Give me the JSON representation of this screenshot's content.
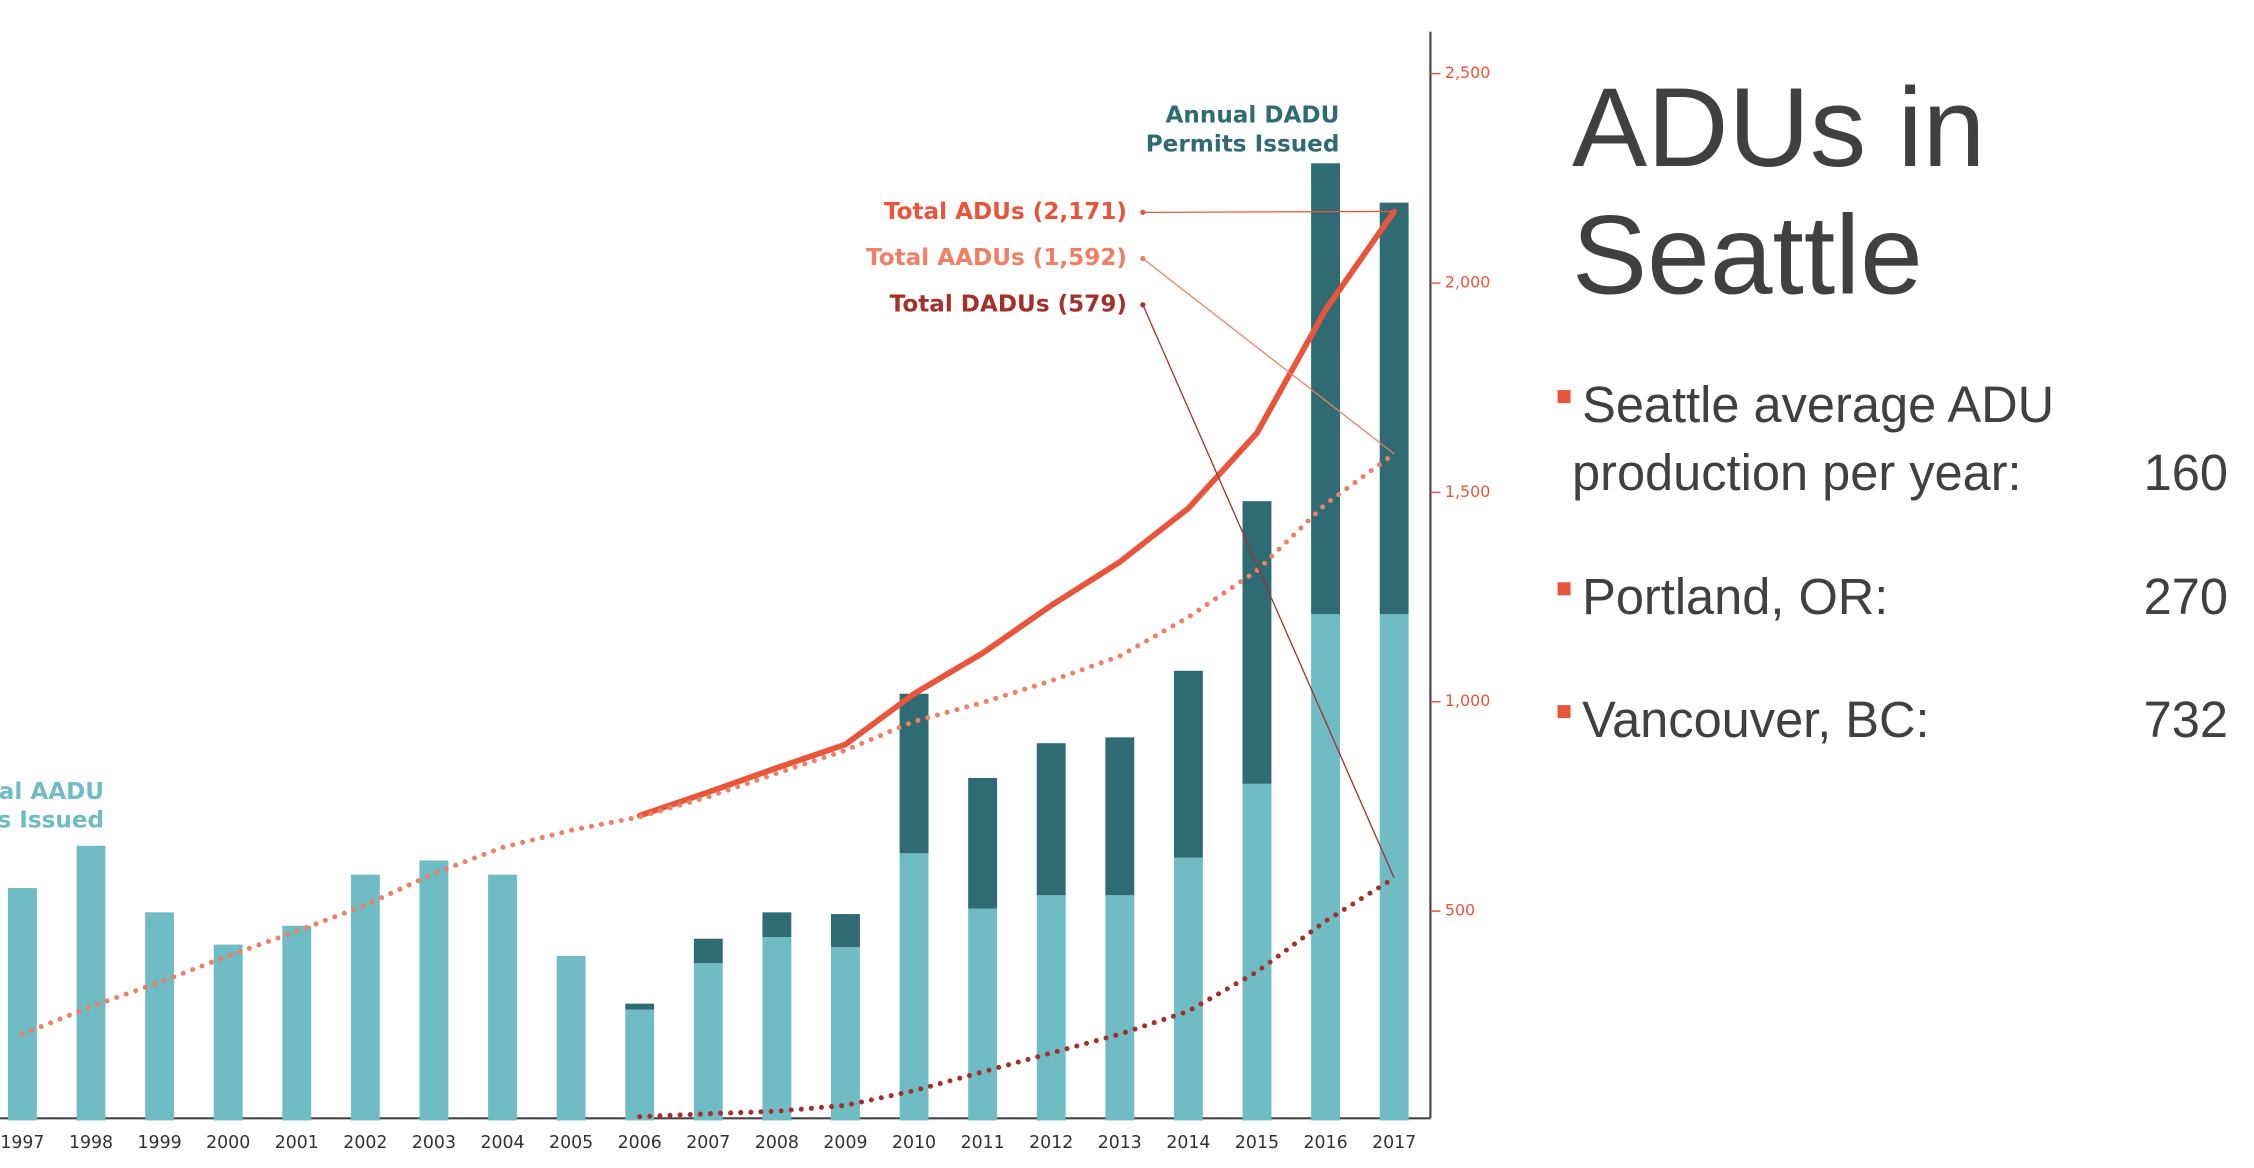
{
  "chart_data": {
    "type": "bar",
    "categories": [
      "1997",
      "1998",
      "1999",
      "2000",
      "2001",
      "2002",
      "2003",
      "2004",
      "2005",
      "2006",
      "2007",
      "2008",
      "2009",
      "2010",
      "2011",
      "2012",
      "2013",
      "2014",
      "2015",
      "2016",
      "2017"
    ],
    "ylim": [
      0,
      2600
    ],
    "yticks": [
      {
        "value": 500,
        "label": "500"
      },
      {
        "value": 1000,
        "label": "1,000"
      },
      {
        "value": 1500,
        "label": "1,500"
      },
      {
        "value": 2000,
        "label": "2,000"
      },
      {
        "value": 2500,
        "label": "2,500"
      }
    ],
    "series": [
      {
        "name": "Annual AADU Permits Issued",
        "type": "bar",
        "color": "#6fbcc4",
        "values": [
          555,
          656,
          497,
          420,
          465,
          587,
          621,
          587,
          393,
          265,
          376,
          438,
          414,
          638,
          506,
          538,
          538,
          628,
          804,
          1209,
          1209
        ]
      },
      {
        "name": "Annual DADU Permits Issued",
        "type": "bar",
        "color": "#2f6b73",
        "values": [
          0,
          0,
          0,
          0,
          0,
          0,
          0,
          0,
          0,
          14,
          58,
          59,
          79,
          381,
          312,
          363,
          377,
          446,
          675,
          1077,
          983
        ]
      },
      {
        "name": "Total ADUs (2,171)",
        "type": "line",
        "style": "solid",
        "color": "#e8553b",
        "values": [
          null,
          null,
          null,
          null,
          null,
          null,
          null,
          null,
          null,
          728,
          784,
          842,
          898,
          1019,
          1116,
          1230,
          1334,
          1462,
          1642,
          1936,
          2171
        ]
      },
      {
        "name": "Total AADUs (1,592)",
        "type": "line",
        "style": "dotted",
        "color": "#f07f63",
        "values": [
          206,
          272,
          330,
          393,
          452,
          514,
          590,
          652,
          693,
          725,
          773,
          829,
          884,
          953,
          998,
          1050,
          1109,
          1202,
          1313,
          1472,
          1592
        ]
      },
      {
        "name": "Total DADUs (579)",
        "type": "line",
        "style": "dotted",
        "color": "#a3302a",
        "values": [
          null,
          null,
          null,
          null,
          null,
          null,
          null,
          null,
          null,
          9,
          16,
          22,
          36,
          71,
          116,
          161,
          206,
          261,
          355,
          476,
          579
        ]
      }
    ]
  },
  "panel": {
    "title": "ADUs in Seattle",
    "items": [
      {
        "label": "Seattle average ADU production per year:",
        "value": 160
      },
      {
        "label": "Portland, OR:",
        "value": 270
      },
      {
        "label": "Vancouver, BC:",
        "value": 732
      }
    ]
  }
}
